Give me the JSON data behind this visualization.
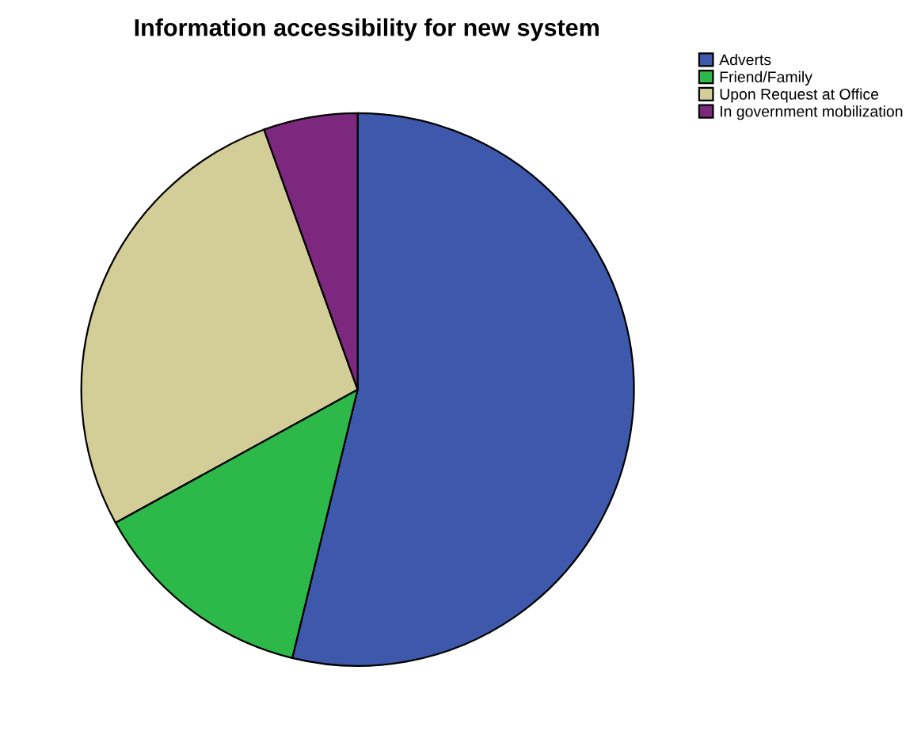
{
  "chart_data": {
    "type": "pie",
    "title": "Information accessibility for new system",
    "categories": [
      "Adverts",
      "Friend/Family",
      "Upon Request at Office",
      "In government mobilization"
    ],
    "values": [
      53.8,
      13.2,
      27.5,
      5.5
    ],
    "colors": [
      "#3e58ac",
      "#2db84a",
      "#d3ce97",
      "#7c287e"
    ],
    "legend": "top right"
  }
}
